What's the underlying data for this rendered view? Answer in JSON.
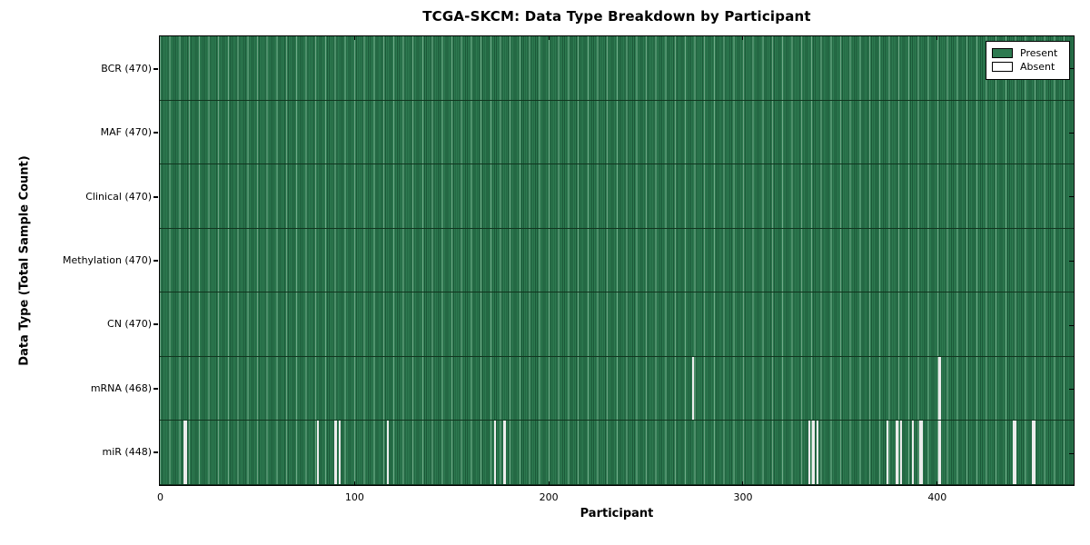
{
  "title": "TCGA-SKCM: Data Type Breakdown by Participant",
  "axes": {
    "xlabel": "Participant",
    "ylabel": "Data Type (Total Sample Count)"
  },
  "legend": {
    "items": [
      {
        "label": "Present",
        "color": "#2d7a50"
      },
      {
        "label": "Absent",
        "color": "#ffffff"
      }
    ]
  },
  "colors": {
    "present": "#2d7a50",
    "absent": "#ffffff",
    "gap_fill": "#ececec",
    "stripe_dark": "#1e5e40",
    "stripe_light": "#beebcd",
    "row_separator": "#11351f",
    "axis": "#000000",
    "background": "#ffffff"
  },
  "chart_data": {
    "type": "heatmap",
    "title": "TCGA-SKCM: Data Type Breakdown by Participant",
    "xlabel": "Participant",
    "ylabel": "Data Type (Total Sample Count)",
    "x_range": [
      0,
      470
    ],
    "x_ticks": [
      0,
      100,
      200,
      300,
      400
    ],
    "total_participants": 470,
    "legend": [
      "Present",
      "Absent"
    ],
    "legend_position": "upper right",
    "rows": [
      {
        "data_type": "BCR",
        "label": "BCR (470)",
        "present_count": 470,
        "absent_participants": []
      },
      {
        "data_type": "MAF",
        "label": "MAF (470)",
        "present_count": 470,
        "absent_participants": []
      },
      {
        "data_type": "Clinical",
        "label": "Clinical (470)",
        "present_count": 470,
        "absent_participants": []
      },
      {
        "data_type": "Methylation",
        "label": "Methylation (470)",
        "present_count": 470,
        "absent_participants": []
      },
      {
        "data_type": "CN",
        "label": "CN (470)",
        "present_count": 470,
        "absent_participants": []
      },
      {
        "data_type": "mRNA",
        "label": "mRNA (468)",
        "present_count": 468,
        "absent_participants": [
          274,
          401
        ]
      },
      {
        "data_type": "miR",
        "label": "miR (448)",
        "present_count": 448,
        "absent_participants": [
          12,
          13,
          81,
          90,
          92,
          117,
          172,
          177,
          334,
          336,
          338,
          374,
          379,
          381,
          387,
          391,
          392,
          401,
          439,
          440,
          449,
          450
        ]
      }
    ]
  }
}
